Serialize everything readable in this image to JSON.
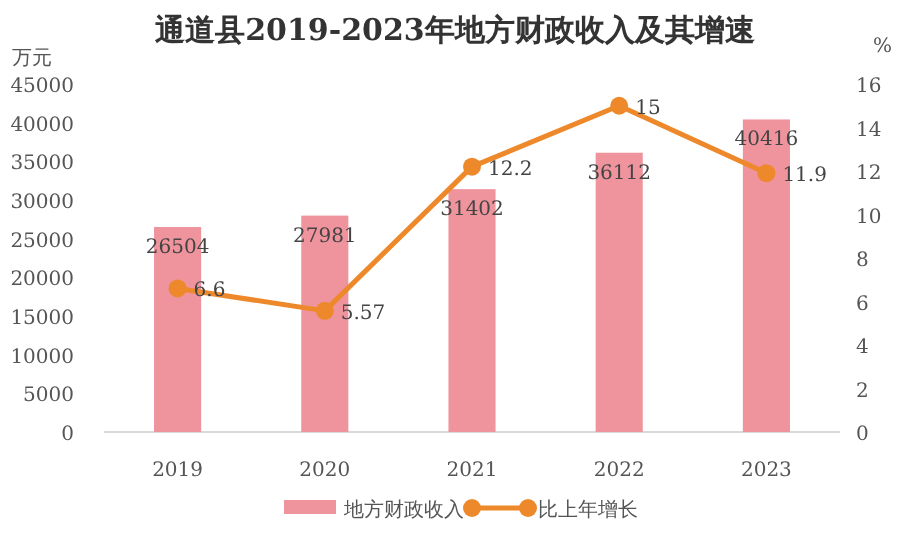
{
  "chart_data": {
    "type": "bar",
    "title": "通道县2019-2023年地方财政收入及其增速",
    "ylabel": "万元",
    "y2label": "%",
    "categories": [
      "2019",
      "2020",
      "2021",
      "2022",
      "2023"
    ],
    "series": [
      {
        "name": "地方财政收入",
        "color": "#ef939d",
        "values": [
          26504,
          27981,
          31402,
          36112,
          40416
        ]
      },
      {
        "name": "比上年增长",
        "type": "line",
        "axis": "y2",
        "color": "#ee892b",
        "marker": "circle",
        "values": [
          6.6,
          5.57,
          12.2,
          15,
          11.9
        ]
      }
    ],
    "ylim": [
      0,
      45000
    ],
    "yticks": [
      0,
      5000,
      10000,
      15000,
      20000,
      25000,
      30000,
      35000,
      40000,
      45000
    ],
    "y2lim": [
      0,
      16
    ],
    "y2ticks": [
      0,
      2,
      4,
      6,
      8,
      10,
      12,
      14,
      16
    ],
    "data_labels": true,
    "legend": "bottom",
    "grid": false
  }
}
